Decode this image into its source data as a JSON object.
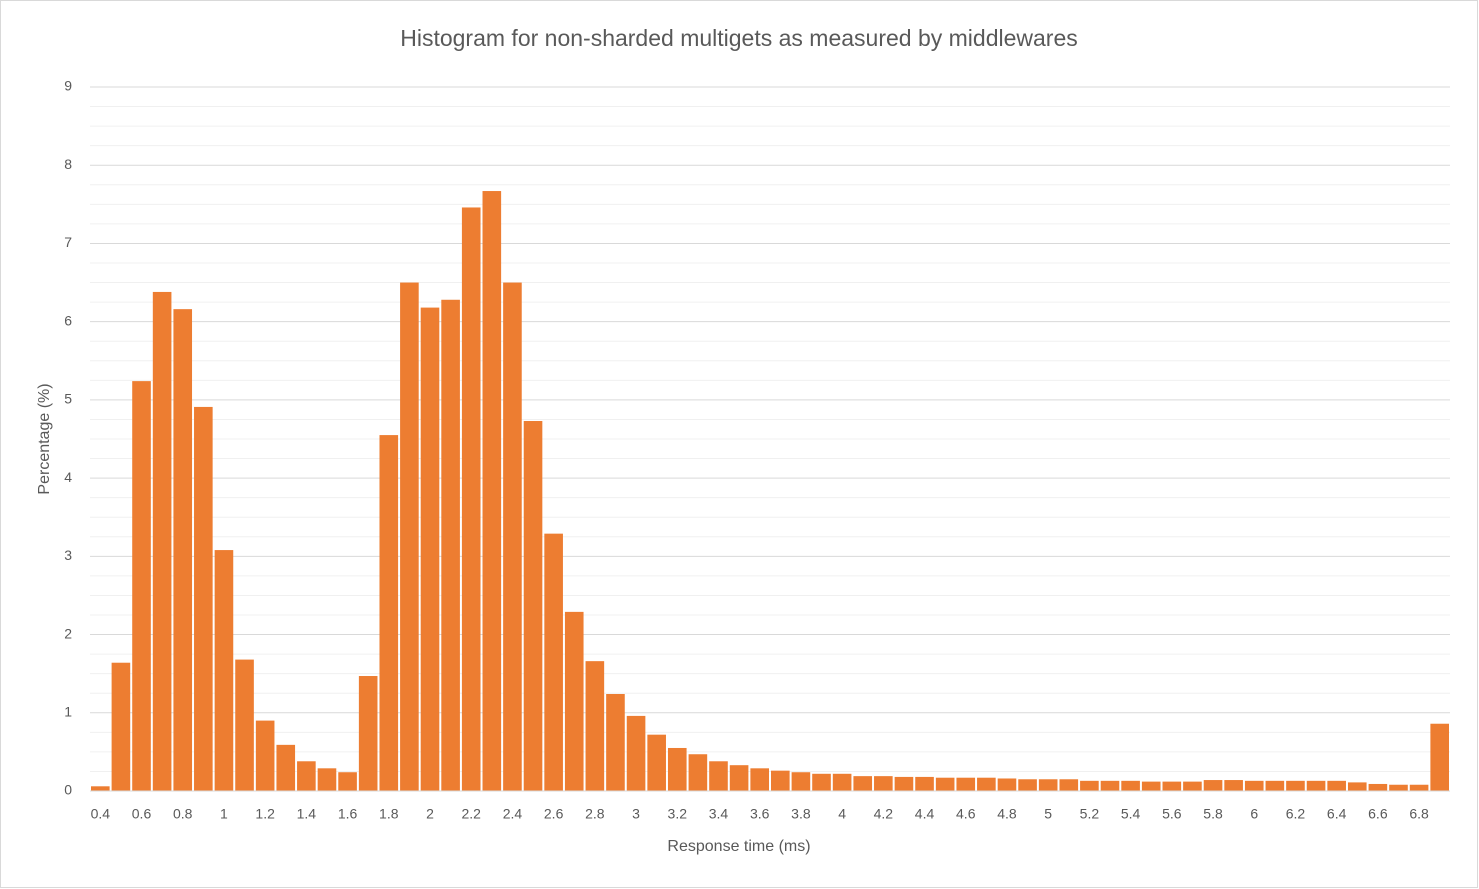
{
  "chart_data": {
    "type": "bar",
    "title": "Histogram for non-sharded multigets as measured by middlewares",
    "x_label": "Response time (ms)",
    "y_label": "Percentage (%)",
    "categories": [
      "0.4",
      null,
      "0.6",
      null,
      "0.8",
      null,
      "1",
      null,
      "1.2",
      null,
      "1.4",
      null,
      "1.6",
      null,
      "1.8",
      null,
      "2",
      null,
      "2.2",
      null,
      "2.4",
      null,
      "2.6",
      null,
      "2.8",
      null,
      "3",
      null,
      "3.2",
      null,
      "3.4",
      null,
      "3.6",
      null,
      "3.8",
      null,
      "4",
      null,
      "4.2",
      null,
      "4.4",
      null,
      "4.6",
      null,
      "4.8",
      null,
      "5",
      null,
      "5.2",
      null,
      "5.4",
      null,
      "5.6",
      null,
      "5.8",
      null,
      "6",
      null,
      "6.2",
      null,
      "6.4",
      null,
      "6.6",
      null,
      "6.8",
      null
    ],
    "values": [
      0.06,
      1.64,
      5.24,
      6.38,
      6.16,
      4.91,
      3.08,
      1.68,
      0.9,
      0.59,
      0.38,
      0.29,
      0.24,
      1.47,
      4.55,
      6.5,
      6.18,
      6.28,
      7.46,
      7.67,
      6.5,
      4.73,
      3.29,
      2.29,
      1.66,
      1.24,
      0.96,
      0.72,
      0.55,
      0.47,
      0.38,
      0.33,
      0.29,
      0.26,
      0.24,
      0.22,
      0.22,
      0.19,
      0.19,
      0.18,
      0.18,
      0.17,
      0.17,
      0.17,
      0.16,
      0.15,
      0.15,
      0.15,
      0.13,
      0.13,
      0.13,
      0.12,
      0.12,
      0.12,
      0.14,
      0.14,
      0.13,
      0.13,
      0.13,
      0.13,
      0.13,
      0.11,
      0.09,
      0.08,
      0.08,
      0.86
    ],
    "color": "#ed7d31",
    "ylim": [
      0,
      9
    ],
    "yticks": [
      0,
      1,
      2,
      3,
      4,
      5,
      6,
      7,
      8,
      9
    ],
    "grid": true,
    "minor_grid": 4
  }
}
